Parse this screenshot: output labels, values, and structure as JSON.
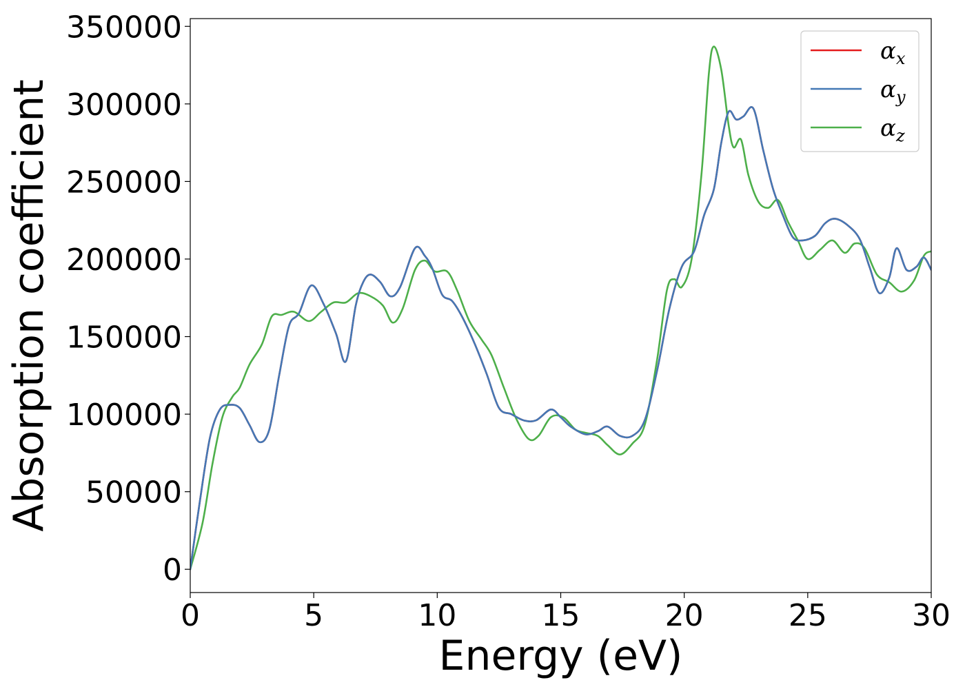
{
  "chart_data": {
    "type": "line",
    "title": "",
    "xlabel": "Energy (eV)",
    "ylabel": "Absorption coefficient",
    "xlim": [
      0,
      30
    ],
    "ylim": [
      -15000,
      355000
    ],
    "xticks": [
      0,
      5,
      10,
      15,
      20,
      25,
      30
    ],
    "yticks": [
      0,
      50000,
      100000,
      150000,
      200000,
      250000,
      300000,
      350000
    ],
    "grid": false,
    "legend_position": "top-right",
    "series": [
      {
        "name": "α",
        "subscript": "x",
        "color": "#e41a1c",
        "points": [
          [
            0,
            0
          ],
          [
            0.4,
            45000
          ],
          [
            0.8,
            85000
          ],
          [
            1.2,
            103000
          ],
          [
            1.6,
            106000
          ],
          [
            2.0,
            104000
          ],
          [
            2.4,
            93000
          ],
          [
            2.8,
            82000
          ],
          [
            3.2,
            90000
          ],
          [
            3.6,
            125000
          ],
          [
            4.0,
            157000
          ],
          [
            4.4,
            165000
          ],
          [
            4.9,
            183000
          ],
          [
            5.4,
            171000
          ],
          [
            5.9,
            152000
          ],
          [
            6.3,
            134000
          ],
          [
            6.7,
            170000
          ],
          [
            7.0,
            185000
          ],
          [
            7.3,
            190000
          ],
          [
            7.7,
            185000
          ],
          [
            8.1,
            176000
          ],
          [
            8.5,
            182000
          ],
          [
            9.1,
            207000
          ],
          [
            9.5,
            202000
          ],
          [
            9.8,
            194000
          ],
          [
            10.2,
            177000
          ],
          [
            10.6,
            173000
          ],
          [
            11.0,
            163000
          ],
          [
            11.5,
            146000
          ],
          [
            12.0,
            126000
          ],
          [
            12.5,
            104000
          ],
          [
            13.0,
            100000
          ],
          [
            13.5,
            96000
          ],
          [
            14.0,
            96000
          ],
          [
            14.6,
            103000
          ],
          [
            15.0,
            98000
          ],
          [
            15.4,
            92000
          ],
          [
            16.0,
            87000
          ],
          [
            16.5,
            89000
          ],
          [
            16.9,
            92000
          ],
          [
            17.4,
            86000
          ],
          [
            17.9,
            86000
          ],
          [
            18.4,
            96000
          ],
          [
            18.9,
            128000
          ],
          [
            19.4,
            168000
          ],
          [
            19.9,
            195000
          ],
          [
            20.4,
            205000
          ],
          [
            20.8,
            228000
          ],
          [
            21.2,
            245000
          ],
          [
            21.5,
            275000
          ],
          [
            21.8,
            295000
          ],
          [
            22.1,
            290000
          ],
          [
            22.4,
            292000
          ],
          [
            22.8,
            297000
          ],
          [
            23.2,
            270000
          ],
          [
            23.6,
            245000
          ],
          [
            24.0,
            228000
          ],
          [
            24.4,
            214000
          ],
          [
            24.8,
            212000
          ],
          [
            25.3,
            215000
          ],
          [
            25.7,
            223000
          ],
          [
            26.1,
            226000
          ],
          [
            26.6,
            222000
          ],
          [
            27.1,
            213000
          ],
          [
            27.5,
            195000
          ],
          [
            27.9,
            178000
          ],
          [
            28.3,
            188000
          ],
          [
            28.6,
            207000
          ],
          [
            29.0,
            193000
          ],
          [
            29.4,
            195000
          ],
          [
            29.7,
            201000
          ],
          [
            30,
            193000
          ]
        ]
      },
      {
        "name": "α",
        "subscript": "y",
        "color": "#4478b5",
        "points": [
          [
            0,
            0
          ],
          [
            0.4,
            45000
          ],
          [
            0.8,
            85000
          ],
          [
            1.2,
            103000
          ],
          [
            1.6,
            106000
          ],
          [
            2.0,
            104000
          ],
          [
            2.4,
            93000
          ],
          [
            2.8,
            82000
          ],
          [
            3.2,
            90000
          ],
          [
            3.6,
            125000
          ],
          [
            4.0,
            157000
          ],
          [
            4.4,
            165000
          ],
          [
            4.9,
            183000
          ],
          [
            5.4,
            171000
          ],
          [
            5.9,
            152000
          ],
          [
            6.3,
            134000
          ],
          [
            6.7,
            170000
          ],
          [
            7.0,
            185000
          ],
          [
            7.3,
            190000
          ],
          [
            7.7,
            185000
          ],
          [
            8.1,
            176000
          ],
          [
            8.5,
            182000
          ],
          [
            9.1,
            207000
          ],
          [
            9.5,
            202000
          ],
          [
            9.8,
            194000
          ],
          [
            10.2,
            177000
          ],
          [
            10.6,
            173000
          ],
          [
            11.0,
            163000
          ],
          [
            11.5,
            146000
          ],
          [
            12.0,
            126000
          ],
          [
            12.5,
            104000
          ],
          [
            13.0,
            100000
          ],
          [
            13.5,
            96000
          ],
          [
            14.0,
            96000
          ],
          [
            14.6,
            103000
          ],
          [
            15.0,
            98000
          ],
          [
            15.4,
            92000
          ],
          [
            16.0,
            87000
          ],
          [
            16.5,
            89000
          ],
          [
            16.9,
            92000
          ],
          [
            17.4,
            86000
          ],
          [
            17.9,
            86000
          ],
          [
            18.4,
            96000
          ],
          [
            18.9,
            128000
          ],
          [
            19.4,
            168000
          ],
          [
            19.9,
            195000
          ],
          [
            20.4,
            205000
          ],
          [
            20.8,
            228000
          ],
          [
            21.2,
            245000
          ],
          [
            21.5,
            275000
          ],
          [
            21.8,
            295000
          ],
          [
            22.1,
            290000
          ],
          [
            22.4,
            292000
          ],
          [
            22.8,
            297000
          ],
          [
            23.2,
            270000
          ],
          [
            23.6,
            245000
          ],
          [
            24.0,
            228000
          ],
          [
            24.4,
            214000
          ],
          [
            24.8,
            212000
          ],
          [
            25.3,
            215000
          ],
          [
            25.7,
            223000
          ],
          [
            26.1,
            226000
          ],
          [
            26.6,
            222000
          ],
          [
            27.1,
            213000
          ],
          [
            27.5,
            195000
          ],
          [
            27.9,
            178000
          ],
          [
            28.3,
            188000
          ],
          [
            28.6,
            207000
          ],
          [
            29.0,
            193000
          ],
          [
            29.4,
            195000
          ],
          [
            29.7,
            201000
          ],
          [
            30,
            193000
          ]
        ]
      },
      {
        "name": "α",
        "subscript": "z",
        "color": "#4daf4a",
        "points": [
          [
            0,
            0
          ],
          [
            0.5,
            30000
          ],
          [
            0.9,
            68000
          ],
          [
            1.3,
            98000
          ],
          [
            1.7,
            111000
          ],
          [
            2.0,
            117000
          ],
          [
            2.4,
            132000
          ],
          [
            2.9,
            145000
          ],
          [
            3.3,
            163000
          ],
          [
            3.7,
            164000
          ],
          [
            4.2,
            166000
          ],
          [
            4.8,
            160000
          ],
          [
            5.3,
            166000
          ],
          [
            5.8,
            172000
          ],
          [
            6.3,
            172000
          ],
          [
            6.8,
            178000
          ],
          [
            7.3,
            176000
          ],
          [
            7.8,
            170000
          ],
          [
            8.2,
            159000
          ],
          [
            8.6,
            168000
          ],
          [
            9.1,
            193000
          ],
          [
            9.5,
            199000
          ],
          [
            9.9,
            192000
          ],
          [
            10.4,
            192000
          ],
          [
            10.8,
            180000
          ],
          [
            11.3,
            160000
          ],
          [
            11.8,
            148000
          ],
          [
            12.2,
            138000
          ],
          [
            12.7,
            117000
          ],
          [
            13.2,
            97000
          ],
          [
            13.7,
            84000
          ],
          [
            14.1,
            86000
          ],
          [
            14.6,
            98000
          ],
          [
            15.1,
            98000
          ],
          [
            15.6,
            90000
          ],
          [
            16.0,
            88000
          ],
          [
            16.5,
            86000
          ],
          [
            16.9,
            80000
          ],
          [
            17.4,
            74000
          ],
          [
            17.9,
            81000
          ],
          [
            18.4,
            93000
          ],
          [
            18.9,
            135000
          ],
          [
            19.3,
            180000
          ],
          [
            19.6,
            187000
          ],
          [
            19.9,
            182000
          ],
          [
            20.3,
            200000
          ],
          [
            20.7,
            255000
          ],
          [
            21.0,
            320000
          ],
          [
            21.2,
            337000
          ],
          [
            21.5,
            322000
          ],
          [
            21.8,
            286000
          ],
          [
            22.0,
            272000
          ],
          [
            22.3,
            277000
          ],
          [
            22.6,
            254000
          ],
          [
            23.0,
            237000
          ],
          [
            23.4,
            233000
          ],
          [
            23.8,
            238000
          ],
          [
            24.2,
            224000
          ],
          [
            24.6,
            212000
          ],
          [
            25.0,
            200000
          ],
          [
            25.5,
            206000
          ],
          [
            26.0,
            212000
          ],
          [
            26.5,
            204000
          ],
          [
            26.9,
            210000
          ],
          [
            27.3,
            207000
          ],
          [
            27.8,
            190000
          ],
          [
            28.3,
            185000
          ],
          [
            28.8,
            179000
          ],
          [
            29.3,
            186000
          ],
          [
            29.7,
            202000
          ],
          [
            30,
            205000
          ]
        ]
      }
    ]
  }
}
